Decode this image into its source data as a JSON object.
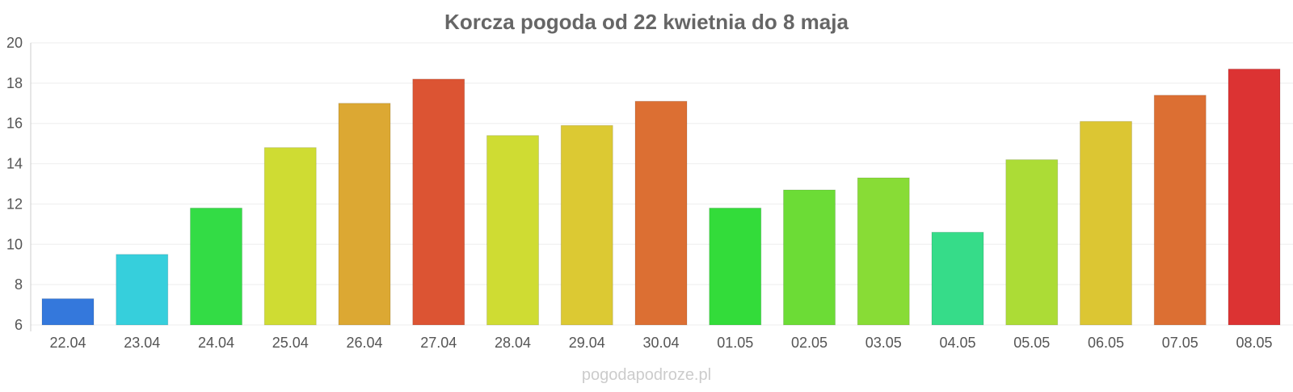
{
  "chart_data": {
    "type": "bar",
    "title": "Korcza pogoda od 22 kwietnia do 8 maja",
    "xlabel": "",
    "ylabel": "",
    "ylim": [
      6,
      20
    ],
    "yticks": [
      "6",
      "8",
      "10",
      "12",
      "14",
      "16",
      "18",
      "20"
    ],
    "grid": true,
    "categories": [
      "22.04",
      "23.04",
      "24.04",
      "25.04",
      "26.04",
      "27.04",
      "28.04",
      "29.04",
      "30.04",
      "01.05",
      "02.05",
      "03.05",
      "04.05",
      "05.05",
      "06.05",
      "07.05",
      "08.05"
    ],
    "values": [
      7.3,
      9.5,
      11.8,
      14.8,
      17.0,
      18.2,
      15.4,
      15.9,
      17.1,
      11.8,
      12.7,
      13.3,
      10.6,
      14.2,
      16.1,
      17.4,
      18.7
    ],
    "colors": [
      "#3478dc",
      "#36cfdc",
      "#33dc45",
      "#cfdc33",
      "#dca833",
      "#dc5433",
      "#cfdc33",
      "#dcc933",
      "#dc6f33",
      "#33dc3a",
      "#6cdc36",
      "#88dc36",
      "#36dc89",
      "#acdc36",
      "#dcc633",
      "#dc6f33",
      "#dc3333"
    ]
  },
  "watermark": "pogodapodroze.pl"
}
